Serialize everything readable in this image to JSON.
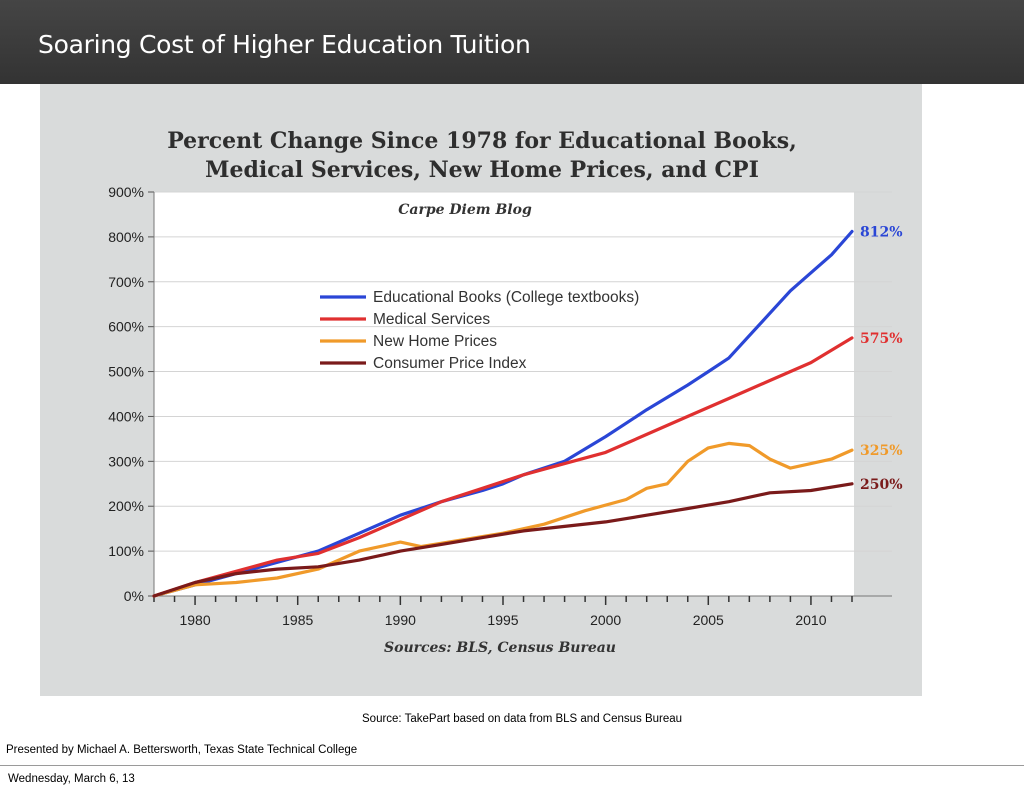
{
  "slide": {
    "title": "Soaring Cost of Higher Education Tuition",
    "caption": "Source: TakePart based on data from BLS and Census Bureau",
    "presenter": "Presented by Michael A. Bettersworth, Texas State Technical College",
    "date": "Wednesday, March 6, 13"
  },
  "chart_data": {
    "type": "line",
    "title": "Percent Change Since 1978 for Educational Books, Medical Services, New Home Prices, and CPI",
    "title_lines": [
      "Percent Change Since 1978 for Educational Books,",
      "Medical Services, New Home Prices, and CPI"
    ],
    "subtitle": "Carpe Diem Blog",
    "source_note": "Sources: BLS, Census Bureau",
    "xlim": [
      1978,
      2012
    ],
    "ylim": [
      0,
      900
    ],
    "x_ticks": [
      1980,
      1985,
      1990,
      1995,
      2000,
      2005,
      2010
    ],
    "y_ticks": [
      "0%",
      "100%",
      "200%",
      "300%",
      "400%",
      "500%",
      "600%",
      "700%",
      "800%",
      "900%"
    ],
    "grid": true,
    "legend_position": "upper-left-center",
    "series": [
      {
        "name": "Educational Books  (College textbooks)",
        "color": "#2a46d6",
        "end_label": "812%",
        "x": [
          1978,
          1980,
          1982,
          1984,
          1986,
          1988,
          1990,
          1992,
          1994,
          1995,
          1996,
          1998,
          2000,
          2001,
          2002,
          2004,
          2005,
          2006,
          2007,
          2008,
          2009,
          2010,
          2011,
          2012
        ],
        "y": [
          0,
          25,
          50,
          75,
          100,
          140,
          180,
          210,
          235,
          250,
          270,
          300,
          355,
          385,
          415,
          470,
          500,
          530,
          580,
          630,
          680,
          720,
          760,
          812
        ]
      },
      {
        "name": "Medical Services",
        "color": "#e03030",
        "end_label": "575%",
        "x": [
          1978,
          1980,
          1982,
          1984,
          1986,
          1988,
          1990,
          1992,
          1994,
          1996,
          1998,
          2000,
          2002,
          2004,
          2006,
          2008,
          2010,
          2012
        ],
        "y": [
          0,
          30,
          55,
          80,
          95,
          130,
          170,
          210,
          240,
          270,
          295,
          320,
          360,
          400,
          440,
          480,
          520,
          575
        ]
      },
      {
        "name": "New Home Prices",
        "color": "#f09a2a",
        "end_label": "325%",
        "x": [
          1978,
          1980,
          1982,
          1984,
          1986,
          1988,
          1990,
          1991,
          1993,
          1995,
          1997,
          1999,
          2001,
          2002,
          2003,
          2004,
          2005,
          2006,
          2007,
          2008,
          2009,
          2010,
          2011,
          2012
        ],
        "y": [
          0,
          25,
          30,
          40,
          60,
          100,
          120,
          110,
          125,
          140,
          160,
          190,
          215,
          240,
          250,
          300,
          330,
          340,
          335,
          305,
          285,
          295,
          305,
          325
        ]
      },
      {
        "name": "Consumer Price Index",
        "color": "#7a1a1a",
        "end_label": "250%",
        "x": [
          1978,
          1980,
          1982,
          1984,
          1986,
          1988,
          1990,
          1992,
          1994,
          1996,
          1998,
          2000,
          2002,
          2004,
          2006,
          2008,
          2010,
          2012
        ],
        "y": [
          0,
          30,
          50,
          60,
          65,
          80,
          100,
          115,
          130,
          145,
          155,
          165,
          180,
          195,
          210,
          230,
          235,
          250
        ]
      }
    ]
  }
}
